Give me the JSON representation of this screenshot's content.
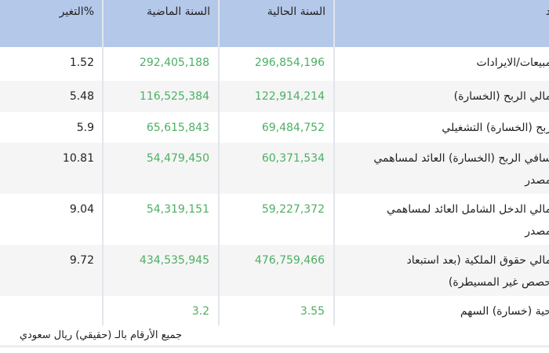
{
  "header": {
    "change": "التغير%",
    "last_year": "السنة الماضية",
    "current_year": "السنة الحالية",
    "item": "د"
  },
  "rows": [
    {
      "item": [
        "مبيعات/الايرادات"
      ],
      "current": "296,854,196",
      "last": "292,405,188",
      "change": "1.52"
    },
    {
      "item": [
        "مالي الربح (الخسارة)"
      ],
      "current": "122,914,214",
      "last": "116,525,384",
      "change": "5.48"
    },
    {
      "item": [
        "ربح (الخسارة) التشغيلي"
      ],
      "current": "69,484,752",
      "last": "65,615,843",
      "change": "5.9"
    },
    {
      "item": [
        "سافي الربح (الخسارة) العائد لمساهمي",
        "مصدر"
      ],
      "current": "60,371,534",
      "last": "54,479,450",
      "change": "10.81"
    },
    {
      "item": [
        "مالي الدخل الشامل العائد لمساهمي",
        "مصدر"
      ],
      "current": "59,227,372",
      "last": "54,319,151",
      "change": "9.04"
    },
    {
      "item": [
        "مالي حقوق الملكية (بعد استبعاد",
        "حصص غير المسيطرة)"
      ],
      "current": "476,759,466",
      "last": "434,535,945",
      "change": "9.72"
    },
    {
      "item": [
        "حية (خسارة) السهم"
      ],
      "current": "3.55",
      "last": "3.2",
      "change": ""
    }
  ],
  "footnote": "جميع الأرقام بالـ (حقيقي) ريال سعودي",
  "colors": {
    "header_bg": "#b4c8ea",
    "value_green": "#4caf63",
    "alt_row": "#f5f5f5"
  }
}
